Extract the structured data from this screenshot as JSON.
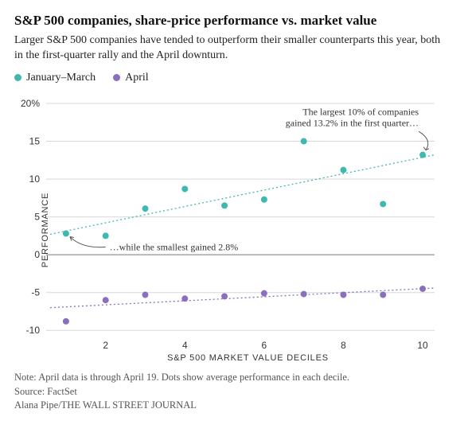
{
  "title": "S&P 500 companies, share-price performance vs. market value",
  "subtitle": "Larger S&P 500 companies have tended to outperform their smaller counterparts this year, both in the first-quarter rally and the April downturn.",
  "legend": {
    "series_a": "January–March",
    "series_b": "April"
  },
  "ylabel": "PERFORMANCE",
  "xlabel": "S&P 500 MARKET VALUE DECILES",
  "note": "Note: April data is through April 19. Dots show average performance in each decile.",
  "source": "Source: FactSet",
  "credit": "Alana Pipe/THE WALL STREET JOURNAL",
  "chart": {
    "type": "scatter",
    "background_color": "#ffffff",
    "grid_color": "#d8d8d8",
    "zero_line_color": "#888888",
    "tick_font_size": 12,
    "tick_font_family": "Arial, sans-serif",
    "tick_color": "#333333",
    "marker_radius": 4,
    "trend_dash": "2,3",
    "trend_width": 1.3,
    "xlim": [
      0.5,
      10.3
    ],
    "ylim": [
      -10.5,
      20
    ],
    "xticks": [
      2,
      4,
      6,
      8,
      10
    ],
    "yticks": [
      -10,
      -5,
      0,
      5,
      10,
      15,
      20
    ],
    "ytick_suffix_on": 20,
    "ytick_suffix": "%",
    "x_values": [
      1,
      2,
      3,
      4,
      5,
      6,
      7,
      8,
      9,
      10
    ],
    "series": [
      {
        "name": "January–March",
        "color": "#3fb8b0",
        "y": [
          2.8,
          2.5,
          6.1,
          8.7,
          6.5,
          7.3,
          15.0,
          11.2,
          6.7,
          13.2
        ],
        "trend": {
          "x1": 0.6,
          "y1": 2.7,
          "x2": 10.3,
          "y2": 13.2
        }
      },
      {
        "name": "April",
        "color": "#8b6fbf",
        "y": [
          -8.8,
          -6.0,
          -5.3,
          -5.8,
          -5.5,
          -5.1,
          -5.2,
          -5.3,
          -5.3,
          -4.5
        ],
        "trend": {
          "x1": 0.6,
          "y1": -7.0,
          "x2": 10.3,
          "y2": -4.4
        }
      }
    ],
    "annotations": {
      "top_right_line1": "The largest 10% of companies",
      "top_right_line2": "gained 13.2% in the first quarter…",
      "bottom_left": "…while the smallest gained 2.8%"
    },
    "annotation_fontsize": 12,
    "annotation_color": "#333333"
  }
}
